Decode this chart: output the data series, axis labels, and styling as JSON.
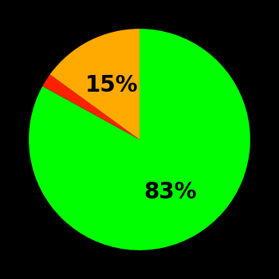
{
  "slices": [
    83,
    2,
    15
  ],
  "colors": [
    "#00ff00",
    "#ff2000",
    "#ffaa00"
  ],
  "labels": [
    "83%",
    "",
    "15%"
  ],
  "background_color": "#000000",
  "text_color": "#000000",
  "font_size": 20,
  "font_weight": "bold",
  "startangle": 90
}
